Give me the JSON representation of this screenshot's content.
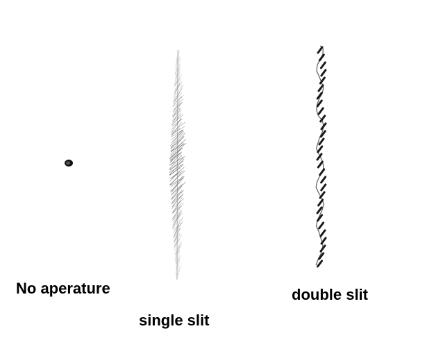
{
  "labels": {
    "no_aperture": "No aperature",
    "single_slit": "single slit",
    "double_slit": "double slit"
  },
  "patterns": {
    "no_aperture": {
      "kind": "single-dot",
      "color": "#111111"
    },
    "single_slit": {
      "kind": "diffuse-band",
      "color": "#555555"
    },
    "double_slit": {
      "kind": "fringe-dashes",
      "color": "#1a1a1a"
    }
  }
}
